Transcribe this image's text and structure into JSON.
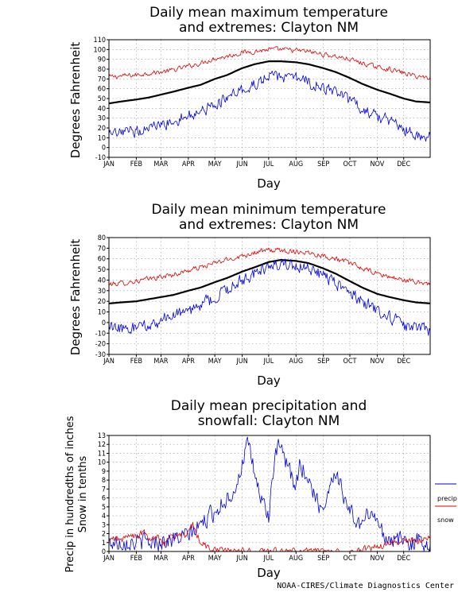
{
  "chart_data": [
    {
      "type": "line",
      "title": [
        "Daily mean maximum temperature",
        "and extremes: Clayton NM"
      ],
      "xlabel": "Day",
      "ylabel": "Degrees Fahrenheit",
      "ylim": [
        -10,
        110
      ],
      "yticks": [
        -10,
        0,
        10,
        20,
        30,
        40,
        50,
        60,
        70,
        80,
        90,
        100,
        110
      ],
      "months": [
        "JAN",
        "FEB",
        "MAR",
        "APR",
        "MAY",
        "JUN",
        "JUL",
        "AUG",
        "SEP",
        "OCT",
        "NOV",
        "DEC"
      ],
      "grid": true,
      "series": [
        {
          "color": "#e00000",
          "x": [
            1,
            15,
            32,
            46,
            60,
            74,
            91,
            105,
            121,
            135,
            152,
            166,
            182,
            196,
            213,
            227,
            244,
            258,
            274,
            288,
            305,
            319,
            335,
            349,
            365
          ],
          "values": [
            72,
            73,
            74,
            76,
            77,
            79,
            83,
            86,
            91,
            93,
            97,
            98,
            100,
            100,
            99,
            98,
            95,
            93,
            90,
            86,
            82,
            80,
            76,
            73,
            71
          ]
        },
        {
          "color": "#000000",
          "x": [
            1,
            15,
            32,
            46,
            60,
            74,
            91,
            105,
            121,
            135,
            152,
            166,
            182,
            196,
            213,
            227,
            244,
            258,
            274,
            288,
            305,
            319,
            335,
            349,
            365
          ],
          "values": [
            45,
            47,
            49,
            51,
            54,
            57,
            61,
            64,
            70,
            74,
            81,
            85,
            88,
            88,
            87,
            85,
            81,
            77,
            71,
            65,
            59,
            55,
            50,
            47,
            46
          ]
        },
        {
          "color": "#0000e0",
          "x": [
            1,
            15,
            32,
            46,
            60,
            74,
            91,
            105,
            121,
            135,
            152,
            166,
            182,
            196,
            213,
            227,
            244,
            258,
            274,
            288,
            305,
            319,
            335,
            349,
            365
          ],
          "values": [
            12,
            14,
            17,
            20,
            23,
            27,
            33,
            37,
            44,
            50,
            58,
            64,
            73,
            72,
            70,
            67,
            61,
            55,
            47,
            40,
            32,
            27,
            20,
            14,
            10
          ]
        }
      ]
    },
    {
      "type": "line",
      "title": [
        "Daily mean minimum temperature",
        "and extremes: Clayton NM"
      ],
      "xlabel": "Day",
      "ylabel": "Degrees Fahrenheit",
      "ylim": [
        -30,
        80
      ],
      "yticks": [
        -30,
        -20,
        -10,
        0,
        10,
        20,
        30,
        40,
        50,
        60,
        70,
        80
      ],
      "months": [
        "JAN",
        "FEB",
        "MAR",
        "APR",
        "MAY",
        "JUN",
        "JUL",
        "AUG",
        "SEP",
        "OCT",
        "NOV",
        "DEC"
      ],
      "grid": true,
      "series": [
        {
          "color": "#e00000",
          "x": [
            1,
            15,
            32,
            46,
            60,
            74,
            91,
            105,
            121,
            135,
            152,
            166,
            182,
            196,
            213,
            227,
            244,
            258,
            274,
            288,
            305,
            319,
            335,
            349,
            365
          ],
          "values": [
            36,
            37,
            39,
            41,
            43,
            45,
            49,
            52,
            56,
            59,
            63,
            66,
            68,
            68,
            67,
            66,
            63,
            60,
            56,
            51,
            46,
            43,
            40,
            38,
            37
          ]
        },
        {
          "color": "#000000",
          "x": [
            1,
            15,
            32,
            46,
            60,
            74,
            91,
            105,
            121,
            135,
            152,
            166,
            182,
            196,
            213,
            227,
            244,
            258,
            274,
            288,
            305,
            319,
            335,
            349,
            365
          ],
          "values": [
            18,
            19,
            20,
            22,
            24,
            26,
            30,
            33,
            38,
            42,
            48,
            52,
            57,
            59,
            58,
            56,
            51,
            46,
            39,
            33,
            27,
            24,
            21,
            19,
            18
          ]
        },
        {
          "color": "#0000e0",
          "x": [
            1,
            15,
            32,
            46,
            60,
            74,
            91,
            105,
            121,
            135,
            152,
            166,
            182,
            196,
            213,
            227,
            244,
            258,
            274,
            288,
            305,
            319,
            335,
            349,
            365
          ],
          "values": [
            -5,
            -6,
            -5,
            -3,
            2,
            6,
            11,
            16,
            24,
            31,
            40,
            47,
            53,
            55,
            54,
            51,
            44,
            37,
            28,
            20,
            11,
            4,
            -2,
            -6,
            -8
          ]
        }
      ]
    },
    {
      "type": "line",
      "title": [
        "Daily mean precipitation and",
        "snowfall: Clayton NM"
      ],
      "xlabel": "Day",
      "ylabel": [
        "Precip in hundredths of inches",
        "Snow in tenths"
      ],
      "ylim": [
        0,
        13
      ],
      "yticks": [
        0,
        1,
        2,
        3,
        4,
        5,
        6,
        7,
        8,
        9,
        10,
        11,
        12,
        13
      ],
      "months": [
        "JAN",
        "FEB",
        "MAR",
        "APR",
        "MAY",
        "JUN",
        "JUL",
        "AUG",
        "SEP",
        "OCT",
        "NOV",
        "DEC"
      ],
      "grid": true,
      "legend": "right",
      "series": [
        {
          "name": "precip",
          "color": "#0000e0",
          "x": [
            1,
            10,
            20,
            32,
            42,
            52,
            60,
            70,
            80,
            91,
            100,
            110,
            121,
            130,
            140,
            148,
            152,
            158,
            163,
            168,
            173,
            178,
            182,
            186,
            191,
            195,
            200,
            206,
            212,
            218,
            222,
            228,
            235,
            240,
            244,
            250,
            256,
            262,
            268,
            274,
            280,
            286,
            292,
            298,
            305,
            312,
            320,
            330,
            340,
            350,
            358,
            365
          ],
          "values": [
            1,
            1,
            1.2,
            1,
            1.1,
            1,
            1.2,
            1.3,
            1.5,
            1.8,
            2.5,
            3.5,
            4.5,
            5.5,
            6.5,
            8,
            10,
            12,
            10,
            8,
            6,
            5,
            4,
            8,
            11,
            12,
            10,
            9,
            7,
            10,
            9,
            8,
            6,
            5,
            5,
            7,
            9,
            8,
            6,
            4.5,
            3.5,
            3,
            3.5,
            5,
            3,
            2,
            1.5,
            1.2,
            1,
            1.2,
            1,
            1
          ]
        },
        {
          "name": "snow",
          "color": "#e00000",
          "x": [
            1,
            8,
            16,
            24,
            32,
            40,
            48,
            56,
            64,
            72,
            80,
            88,
            96,
            104,
            112,
            120,
            128,
            140,
            180,
            240,
            280,
            290,
            300,
            310,
            320,
            328,
            336,
            344,
            352,
            360,
            365
          ],
          "values": [
            1,
            1.5,
            1.2,
            2,
            1.5,
            2.2,
            1.2,
            1.8,
            1,
            1.6,
            2,
            1.5,
            3,
            1.2,
            0.5,
            0.2,
            0.1,
            0,
            0,
            0,
            0,
            0.2,
            0.4,
            0.6,
            0.9,
            1,
            1.2,
            1.3,
            1.1,
            1.6,
            1.5
          ]
        }
      ]
    }
  ],
  "legend": {
    "precip": "precip",
    "snow": "snow"
  },
  "credit": "NOAA-CIRES/Climate Diagnostics Center"
}
